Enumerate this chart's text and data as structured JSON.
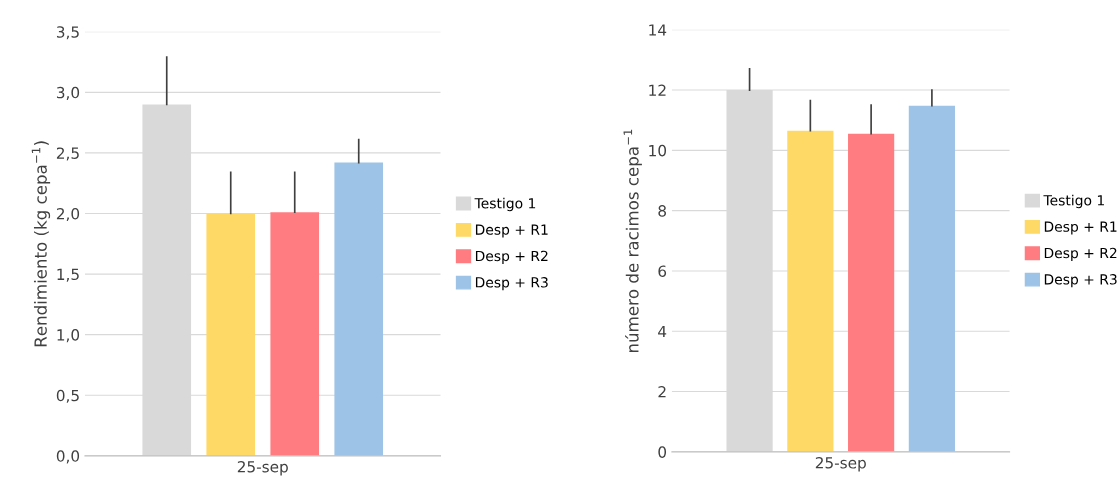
{
  "chart_data": [
    {
      "type": "bar",
      "ylabel": "Rendimiento (kg cepa$^{−1}$)",
      "categories": [
        "25-sep"
      ],
      "series": [
        {
          "name": "Testigo 1",
          "color": "#d9d9d9",
          "values": [
            2.9
          ],
          "errors": [
            [
              2.9,
              3.29
            ]
          ]
        },
        {
          "name": "Desp + R1",
          "color": "#ffd966",
          "values": [
            2.0
          ],
          "errors": [
            [
              2.0,
              2.34
            ]
          ]
        },
        {
          "name": "Desp + R2",
          "color": "#ff7c80",
          "values": [
            2.01
          ],
          "errors": [
            [
              2.01,
              2.34
            ]
          ]
        },
        {
          "name": "Desp + R3",
          "color": "#9dc3e6",
          "values": [
            2.42
          ],
          "errors": [
            [
              2.42,
              2.61
            ]
          ]
        }
      ],
      "ylim": [
        0,
        3.5
      ],
      "yticks": [
        {
          "value": 0,
          "label": "0,0"
        },
        {
          "value": 0.5,
          "label": "0,5"
        },
        {
          "value": 1,
          "label": "1,0"
        },
        {
          "value": 1.5,
          "label": "1,5"
        },
        {
          "value": 2,
          "label": "2,0"
        },
        {
          "value": 2.5,
          "label": "2,5"
        },
        {
          "value": 3,
          "label": "3,0"
        },
        {
          "value": 3.5,
          "label": "3,5"
        }
      ],
      "grid": "y",
      "legend": "right"
    },
    {
      "type": "bar",
      "ylabel": "número de racimos cepa$^{−1}$",
      "categories": [
        "25-sep"
      ],
      "series": [
        {
          "name": "Testigo 1",
          "color": "#d9d9d9",
          "values": [
            12.0
          ],
          "errors": [
            [
              12.0,
              12.7
            ]
          ]
        },
        {
          "name": "Desp + R1",
          "color": "#ffd966",
          "values": [
            10.65
          ],
          "errors": [
            [
              10.65,
              11.65
            ]
          ]
        },
        {
          "name": "Desp + R2",
          "color": "#ff7c80",
          "values": [
            10.55
          ],
          "errors": [
            [
              10.55,
              11.5
            ]
          ]
        },
        {
          "name": "Desp + R3",
          "color": "#9dc3e6",
          "values": [
            11.48
          ],
          "errors": [
            [
              11.48,
              12.0
            ]
          ]
        }
      ],
      "ylim": [
        0,
        14
      ],
      "yticks": [
        0,
        2,
        4,
        6,
        8,
        10,
        12,
        14
      ],
      "grid": "y",
      "legend": "right"
    }
  ]
}
